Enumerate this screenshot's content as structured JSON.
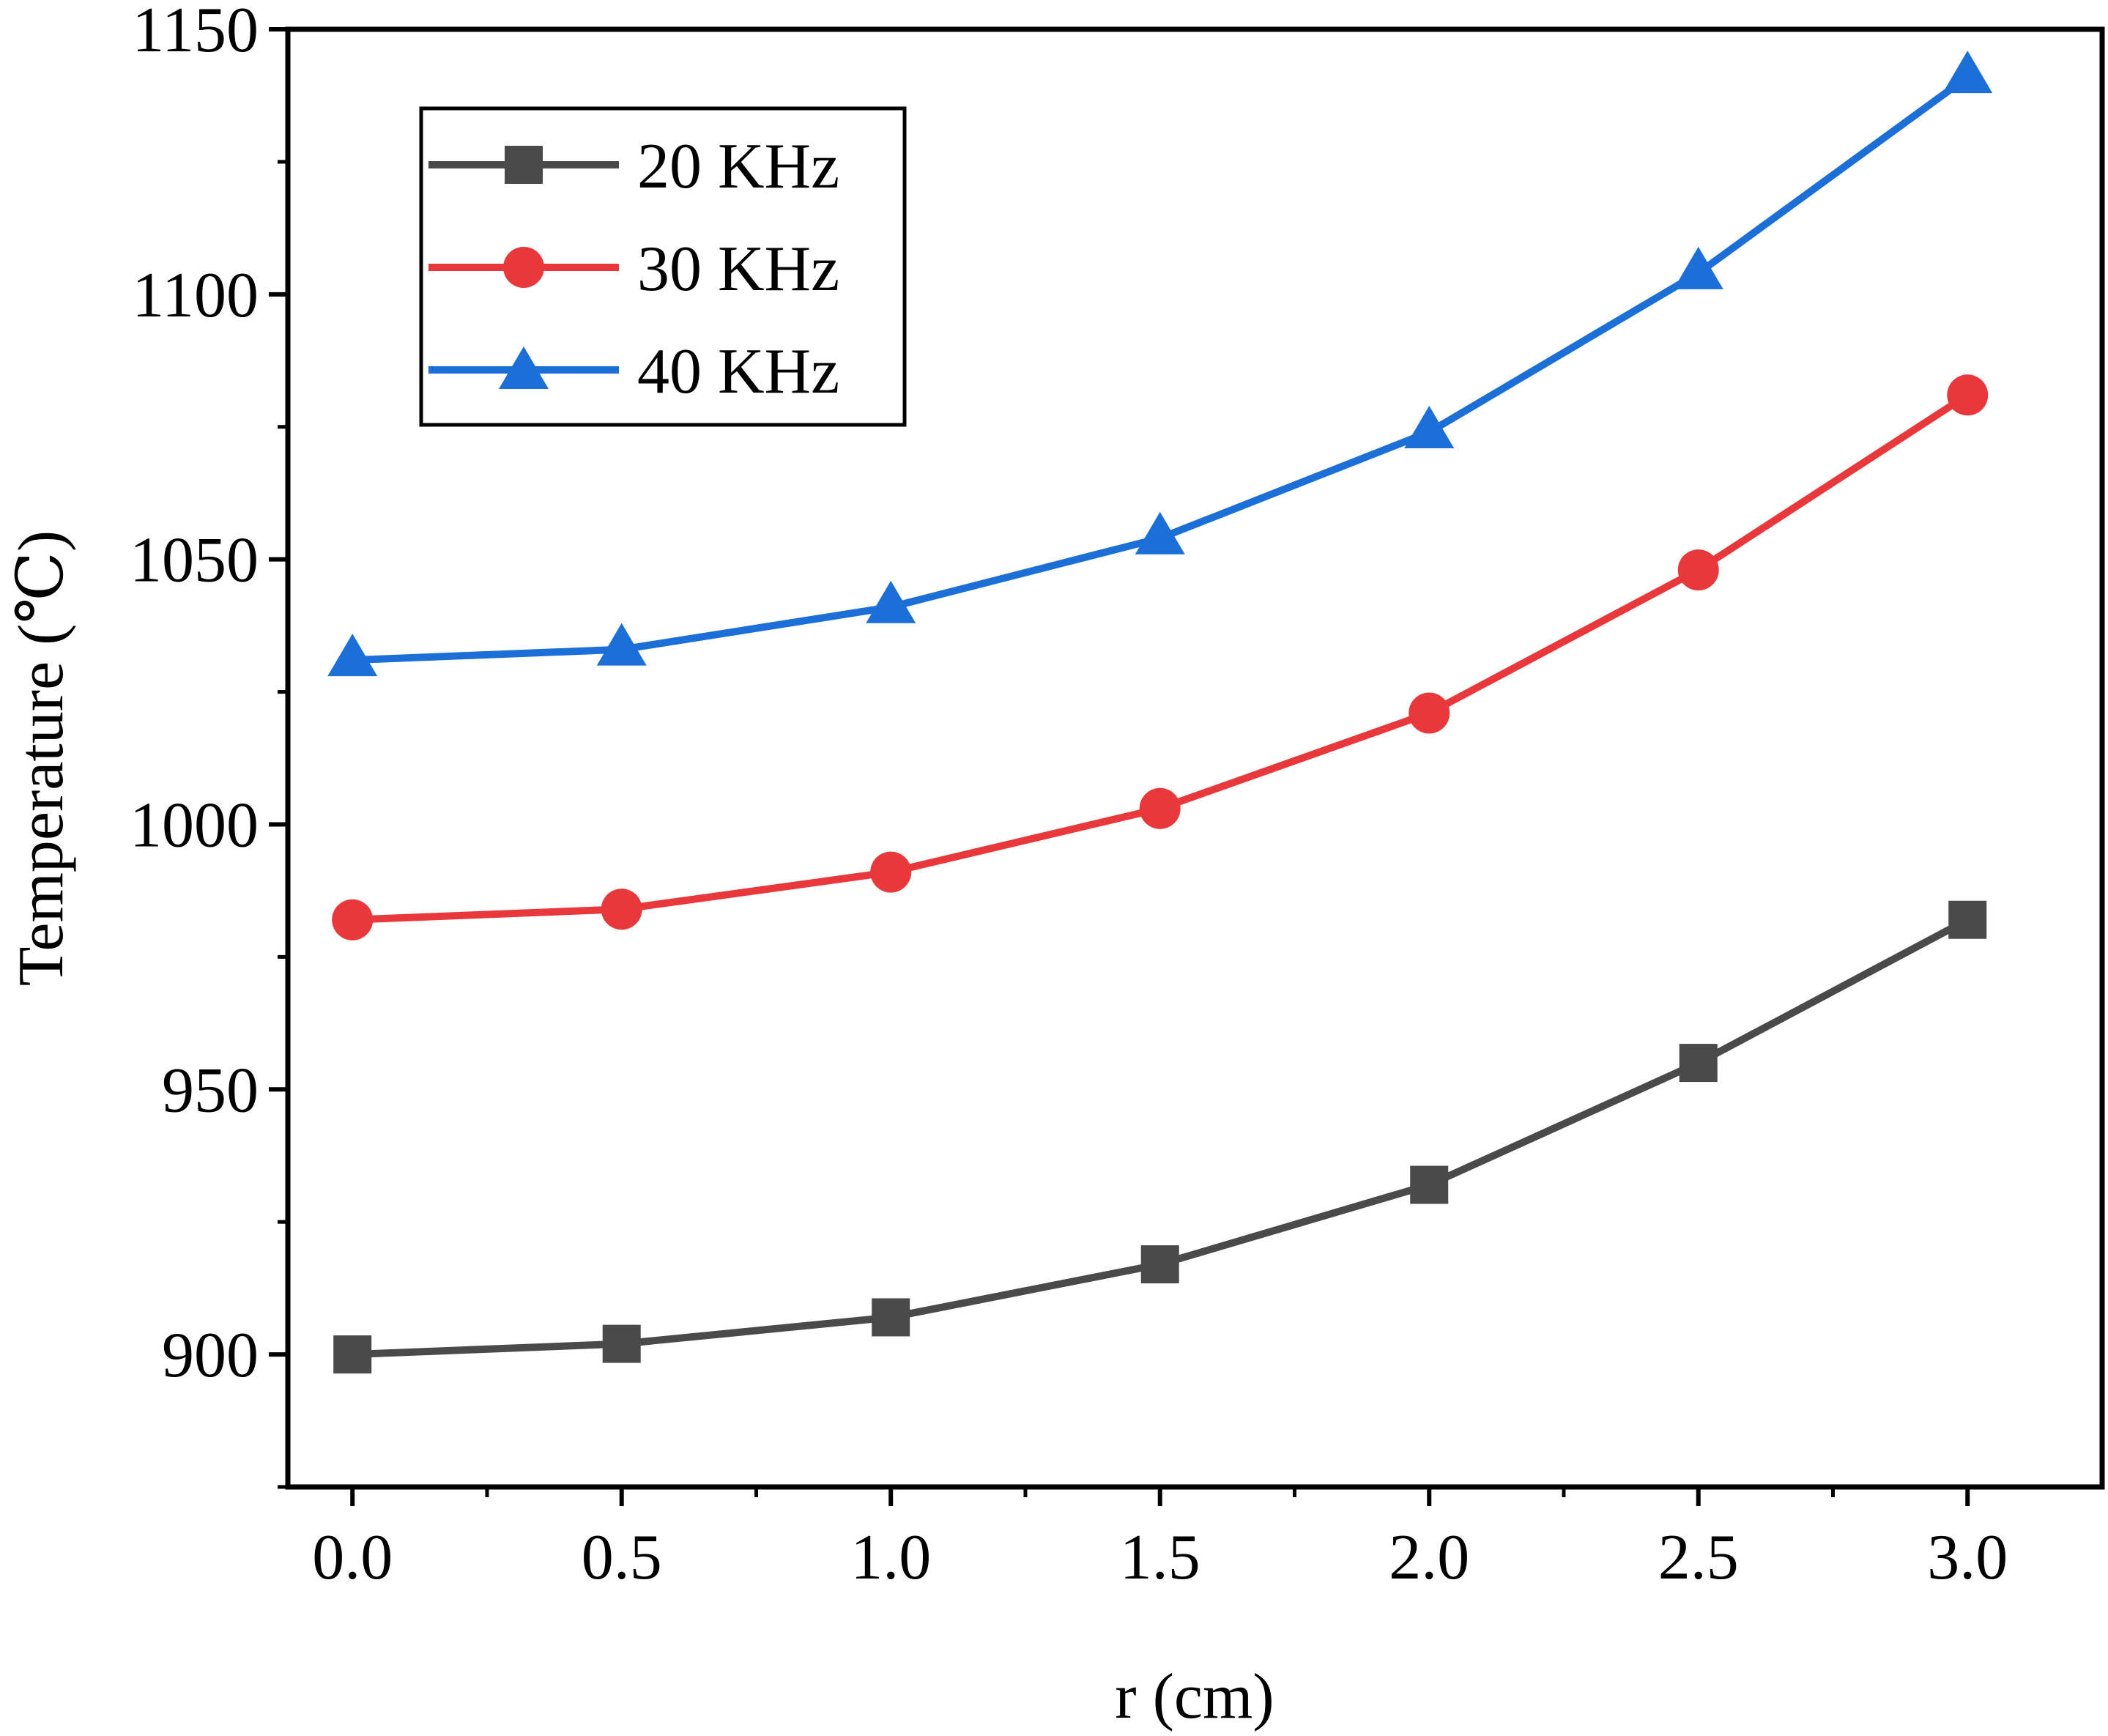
{
  "chart_data": {
    "type": "line",
    "title": "",
    "xlabel": "r (cm)",
    "ylabel": "Temperature (℃)",
    "xlim": [
      -0.12,
      3.25
    ],
    "ylim": [
      875,
      1150
    ],
    "xticks": [
      0.0,
      0.5,
      1.0,
      1.5,
      2.0,
      2.5,
      3.0
    ],
    "xtick_labels": [
      "0.0",
      "0.5",
      "1.0",
      "1.5",
      "2.0",
      "2.5",
      "3.0"
    ],
    "yticks": [
      900,
      950,
      1000,
      1050,
      1100,
      1150
    ],
    "ytick_labels": [
      "900",
      "950",
      "1000",
      "1050",
      "1100",
      "1150"
    ],
    "grid": false,
    "legend_position": "top-left",
    "x": [
      0.0,
      0.5,
      1.0,
      1.5,
      2.0,
      2.5,
      3.0
    ],
    "series": [
      {
        "name": "20 KHz",
        "marker": "square",
        "color": "#4a4a4a",
        "values": [
          900,
          902,
          907,
          917,
          932,
          955,
          982
        ]
      },
      {
        "name": "30 KHz",
        "marker": "circle",
        "color": "#e8383b",
        "values": [
          982,
          984,
          991,
          1003,
          1021,
          1048,
          1081
        ]
      },
      {
        "name": "40 KHz",
        "marker": "triangle",
        "color": "#1b6fd6",
        "values": [
          1031,
          1033,
          1041,
          1054,
          1074,
          1104,
          1141
        ]
      }
    ]
  }
}
